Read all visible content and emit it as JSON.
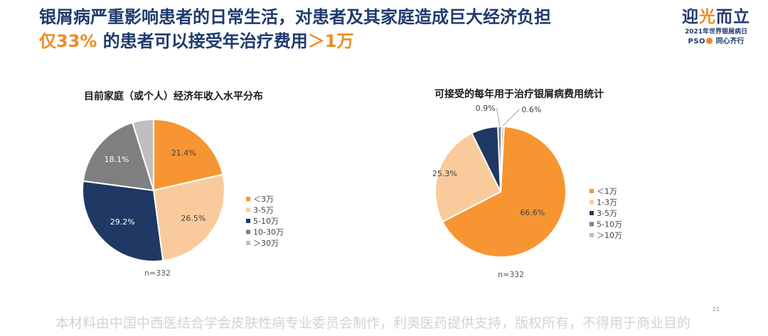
{
  "headline": {
    "line1": "银屑病严重影响患者的日常生活，对患者及其家庭造成巨大经济负担",
    "line2_accent": "仅33%",
    "line2_mid": " 的患者可以接受年治疗费用",
    "line2_tail": "＞1万"
  },
  "logo": {
    "main_prefix": "迎",
    "main_accent": "光",
    "main_suffix": "而立",
    "subtitle": "2021年世界银屑病日",
    "pso": "PSO",
    "tagline": "同心齐行"
  },
  "colors": {
    "orange": "#F79533",
    "peach": "#F9CB9C",
    "navy": "#1F3864",
    "gray": "#7F7F7F",
    "light_gray": "#BFBFBF"
  },
  "chart_data": [
    {
      "type": "pie",
      "title": "目前家庭（或个人）经济年收入水平分布",
      "categories": [
        "＜3万",
        "3-5万",
        "5-10万",
        "10-30万",
        "＞30万"
      ],
      "values": [
        21.4,
        26.5,
        29.2,
        18.1,
        4.8
      ],
      "labels": [
        "21.4%",
        "26.5%",
        "29.2%",
        "18.1%",
        ""
      ],
      "note": "n=332",
      "legend": "right"
    },
    {
      "type": "pie",
      "title": "可接受的每年用于治疗银屑病费用统计",
      "categories": [
        "＜1万",
        "1-3万",
        "3-5万",
        "5-10万",
        "＞10万"
      ],
      "values": [
        66.6,
        25.3,
        6.6,
        0.9,
        0.6
      ],
      "labels": [
        "66.6%",
        "25.3%",
        "",
        "0.9%",
        "0.6%"
      ],
      "note": "n=332",
      "legend": "right"
    }
  ],
  "page_number": "21",
  "footer": "本材料由中国中西医结合学会皮肤性病专业委员会制作，利奥医药提供支持，版权所有，不得用于商业目的"
}
